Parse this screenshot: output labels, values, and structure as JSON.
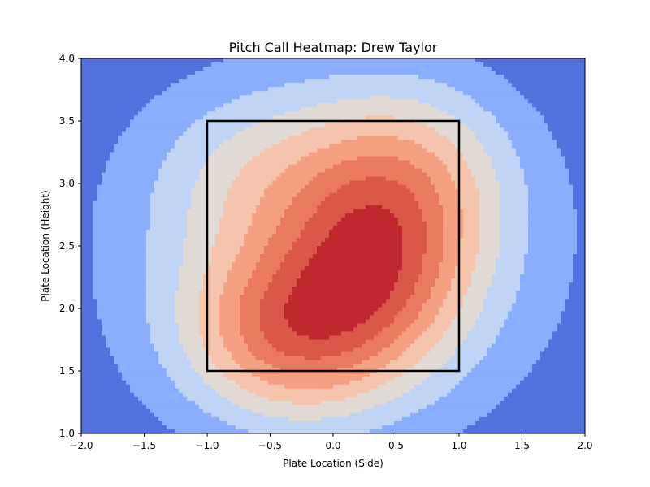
{
  "chart_data": {
    "type": "heatmap",
    "title": "Pitch Call Heatmap: Drew Taylor",
    "xlabel": "Plate Location (Side)",
    "ylabel": "Plate Location (Height)",
    "xlim": [
      -2.0,
      2.0
    ],
    "ylim": [
      1.0,
      4.0
    ],
    "x_ticks": [
      -2.0,
      -1.5,
      -1.0,
      -0.5,
      0.0,
      0.5,
      1.0,
      1.5,
      2.0
    ],
    "x_tick_labels": [
      "−2.0",
      "−1.5",
      "−1.0",
      "−0.5",
      "0.0",
      "0.5",
      "1.0",
      "1.5",
      "2.0"
    ],
    "y_ticks": [
      1.0,
      1.5,
      2.0,
      2.5,
      3.0,
      3.5,
      4.0
    ],
    "y_tick_labels": [
      "1.0",
      "1.5",
      "2.0",
      "2.5",
      "3.0",
      "3.5",
      "4.0"
    ],
    "colormap": "coolwarm",
    "contour_levels": [
      {
        "level": 0,
        "color": "#5470de"
      },
      {
        "level": 1,
        "color": "#8badfd"
      },
      {
        "level": 2,
        "color": "#c0d4f5"
      },
      {
        "level": 3,
        "color": "#e2dad5"
      },
      {
        "level": 4,
        "color": "#f5c4ac"
      },
      {
        "level": 5,
        "color": "#f5a081"
      },
      {
        "level": 6,
        "color": "#e97a5f"
      },
      {
        "level": 7,
        "color": "#d95847"
      },
      {
        "level": 8,
        "color": "#c0282f"
      }
    ],
    "density_peaks": [
      {
        "x": -0.35,
        "y": 1.8,
        "amplitude": 1.0,
        "sx": 0.55,
        "sy": 0.45
      },
      {
        "x": 0.35,
        "y": 2.35,
        "amplitude": 0.95,
        "sx": 0.5,
        "sy": 0.55
      },
      {
        "x": 0.6,
        "y": 3.1,
        "amplitude": 0.55,
        "sx": 0.55,
        "sy": 0.5
      },
      {
        "x": -0.55,
        "y": 3.05,
        "amplitude": 0.35,
        "sx": 0.6,
        "sy": 0.5
      },
      {
        "x": 0.0,
        "y": 2.4,
        "amplitude": 0.6,
        "sx": 1.1,
        "sy": 0.9
      }
    ],
    "strike_zone": {
      "x": [
        -1.0,
        1.0
      ],
      "y": [
        1.5,
        3.5
      ],
      "color": "#000000"
    },
    "grid": false,
    "legend": "none"
  }
}
